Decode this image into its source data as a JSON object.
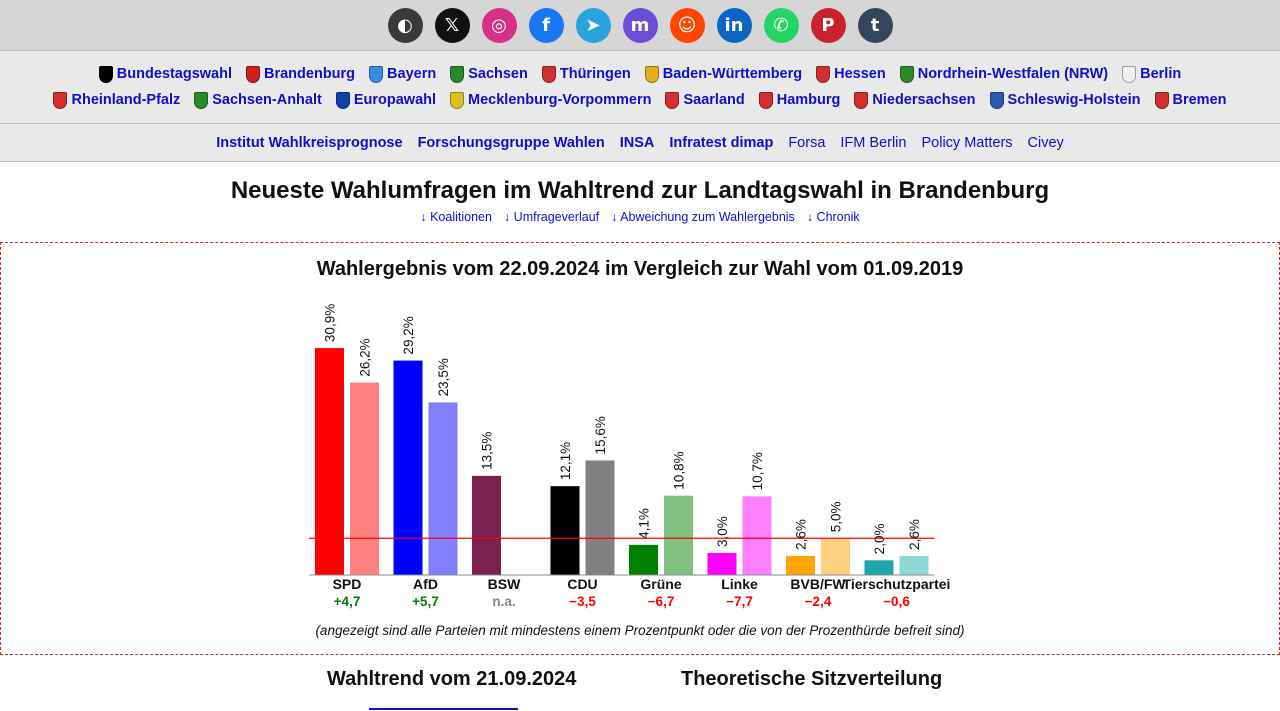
{
  "social": [
    {
      "name": "mixed-icon",
      "glyph": "◐",
      "color": "#3a3a3a"
    },
    {
      "name": "x-icon",
      "glyph": "𝕏",
      "color": "#111111"
    },
    {
      "name": "instagram-icon",
      "glyph": "◎",
      "color": "#d6308a"
    },
    {
      "name": "facebook-icon",
      "glyph": "f",
      "color": "#1877f2"
    },
    {
      "name": "telegram-icon",
      "glyph": "➤",
      "color": "#2aa3dc"
    },
    {
      "name": "mastodon-icon",
      "glyph": "m",
      "color": "#6b4ed8"
    },
    {
      "name": "reddit-icon",
      "glyph": "☺",
      "color": "#ff4500"
    },
    {
      "name": "linkedin-icon",
      "glyph": "in",
      "color": "#0a66c2"
    },
    {
      "name": "whatsapp-icon",
      "glyph": "✆",
      "color": "#25d366"
    },
    {
      "name": "pinterest-icon",
      "glyph": "P",
      "color": "#c8232c"
    },
    {
      "name": "tumblr-icon",
      "glyph": "t",
      "color": "#34465d"
    }
  ],
  "states_row1": [
    {
      "label": "Bundestagswahl",
      "color": "#000000"
    },
    {
      "label": "Brandenburg",
      "color": "#cc2020"
    },
    {
      "label": "Bayern",
      "color": "#3a8ee0"
    },
    {
      "label": "Sachsen",
      "color": "#2a8a2a"
    },
    {
      "label": "Thüringen",
      "color": "#d23030"
    },
    {
      "label": "Baden-Württemberg",
      "color": "#e0b020"
    },
    {
      "label": "Hessen",
      "color": "#d23030"
    },
    {
      "label": "Nordrhein-Westfalen (NRW)",
      "color": "#2a8a2a"
    },
    {
      "label": "Berlin",
      "color": "#f0f0f0"
    }
  ],
  "states_row2": [
    {
      "label": "Rheinland-Pfalz",
      "color": "#d23030"
    },
    {
      "label": "Sachsen-Anhalt",
      "color": "#2a8a2a"
    },
    {
      "label": "Europawahl",
      "color": "#1040b0"
    },
    {
      "label": "Mecklenburg-Vorpommern",
      "color": "#e0c020"
    },
    {
      "label": "Saarland",
      "color": "#d23030"
    },
    {
      "label": "Hamburg",
      "color": "#d23030"
    },
    {
      "label": "Niedersachsen",
      "color": "#d23030"
    },
    {
      "label": "Schleswig-Holstein",
      "color": "#2a5ab0"
    },
    {
      "label": "Bremen",
      "color": "#d23030"
    }
  ],
  "institutes": [
    {
      "label": "Institut Wahlkreisprognose",
      "bold": true
    },
    {
      "label": "Forschungsgruppe Wahlen",
      "bold": true
    },
    {
      "label": "INSA",
      "bold": true
    },
    {
      "label": "Infratest dimap",
      "bold": true
    },
    {
      "label": "Forsa",
      "bold": false
    },
    {
      "label": "IFM Berlin",
      "bold": false
    },
    {
      "label": "Policy Matters",
      "bold": false
    },
    {
      "label": "Civey",
      "bold": false
    }
  ],
  "page_title": "Neueste Wahlumfragen im Wahltrend zur Landtagswahl in Brandenburg",
  "anchors": [
    "↓ Koalitionen",
    "↓ Umfrageverlauf",
    "↓ Abweichung zum Wahlergebnis",
    "↓ Chronik"
  ],
  "chart_data": {
    "type": "bar",
    "title": "Wahlergebnis vom 22.09.2024 im Vergleich zur Wahl vom 01.09.2019",
    "categories": [
      "SPD",
      "AfD",
      "BSW",
      "CDU",
      "Grüne",
      "Linke",
      "BVB/FW",
      "Tierschutzpartei"
    ],
    "series": [
      {
        "values": [
          30.9,
          29.2,
          13.5,
          12.1,
          4.1,
          3.0,
          2.6,
          2.0
        ],
        "labels": [
          "30,9%",
          "29,2%",
          "13,5%",
          "12,1%",
          "4,1%",
          "3,0%",
          "2,6%",
          "2,0%"
        ],
        "colors": [
          "#ff0000",
          "#0000ff",
          "#7b2150",
          "#000000",
          "#008000",
          "#ff00ff",
          "#ffa500",
          "#1aa7a7"
        ]
      },
      {
        "values": [
          26.2,
          23.5,
          null,
          15.6,
          10.8,
          10.7,
          5.0,
          2.6
        ],
        "labels": [
          "26,2%",
          "23,5%",
          "",
          "15,6%",
          "10,8%",
          "10,7%",
          "5,0%",
          "2,6%"
        ],
        "colors": [
          "#ff8080",
          "#8080ff",
          "#bd90a8",
          "#808080",
          "#80c080",
          "#ff80ff",
          "#ffd080",
          "#8cd8d8"
        ]
      }
    ],
    "differences": [
      "+4,7",
      "+5,7",
      "n.a.",
      "−3,5",
      "−6,7",
      "−7,7",
      "−2,4",
      "−0,6"
    ],
    "difference_colors": [
      "#008000",
      "#008000",
      "#888888",
      "#ff0000",
      "#ff0000",
      "#ff0000",
      "#ff0000",
      "#ff0000"
    ],
    "threshold": 5,
    "threshold_color": "#ff0000",
    "ylim": [
      0,
      32
    ]
  },
  "footnote": "(angezeigt sind alle Parteien mit mindestens einem Prozentpunkt oder die von der Prozenthürde befreit sind)",
  "tabs": {
    "trend": "Wahltrend vom 21.09.2024",
    "seats": "Theoretische Sitzverteilung"
  }
}
